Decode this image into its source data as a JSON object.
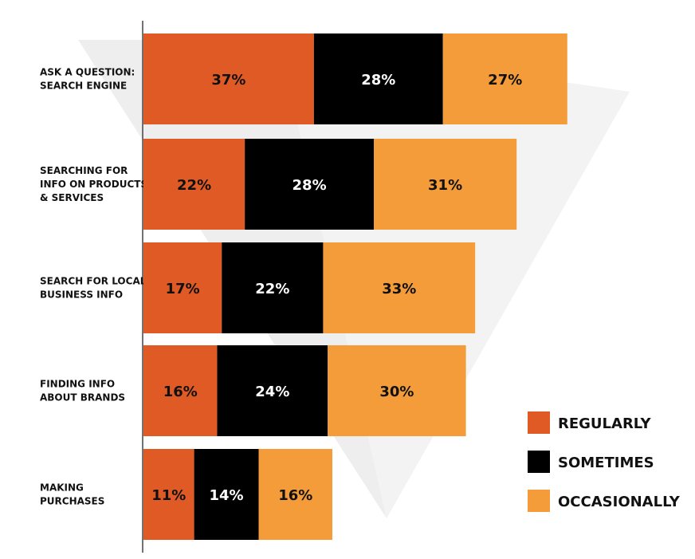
{
  "chart_data": {
    "type": "bar",
    "orientation": "horizontal",
    "stacked": true,
    "categories": [
      [
        "ASK A QUESTION:",
        "SEARCH ENGINE"
      ],
      [
        "SEARCHING FOR",
        "INFO ON PRODUCTS",
        "& SERVICES"
      ],
      [
        "SEARCH FOR LOCAL",
        "BUSINESS INFO"
      ],
      [
        "FINDING INFO",
        "ABOUT BRANDS"
      ],
      [
        "MAKING",
        "PURCHASES"
      ]
    ],
    "series": [
      {
        "name": "REGULARLY",
        "color": "#e05a26",
        "label_color": "#111111",
        "values": [
          37,
          22,
          17,
          16,
          11
        ]
      },
      {
        "name": "SOMETIMES",
        "color": "#000000",
        "label_color": "#ffffff",
        "values": [
          28,
          28,
          22,
          24,
          14
        ]
      },
      {
        "name": "OCCASIONALLY",
        "color": "#f39c39",
        "label_color": "#111111",
        "values": [
          27,
          31,
          33,
          30,
          16
        ]
      }
    ],
    "value_suffix": "%",
    "legend_position": "bottom-right",
    "grid": false,
    "background_watermark": "triangle-chevron"
  }
}
